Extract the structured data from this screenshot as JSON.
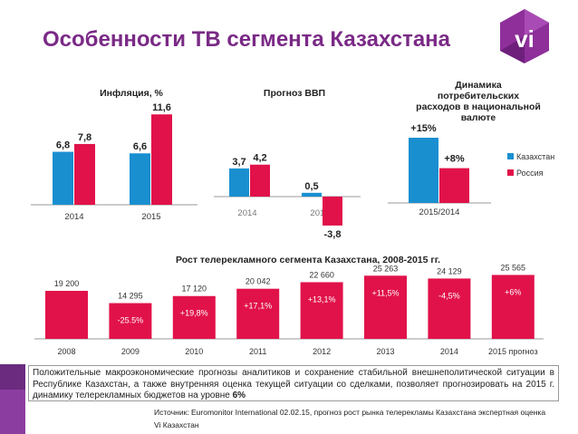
{
  "title": "Особенности ТВ сегмента Казахстана",
  "logo_text": "vi",
  "colors": {
    "kazakhstan": "#1a8fd0",
    "russia": "#e1124a",
    "accent": "#7a2a86"
  },
  "legend": [
    "Казахстан",
    "Россия"
  ],
  "note_text": "Положительные макроэкономические прогнозы аналитиков и сохранение стабильной внешнеполитической ситуации в Республике Казахстан, а также внутренняя оценка текущей ситуации со сделками, позволяет прогнозировать на 2015 г. динамику телерекламных бюджетов на уровне ",
  "note_highlight": "6%",
  "source": "Источник: Euromonitor International 02.02.15, прогноз рост рынка телерекламы Казахстана экспертная оценка Vi Казахстан",
  "chart_data": [
    {
      "type": "bar",
      "title": "Инфляция, %",
      "categories": [
        "2014",
        "2015"
      ],
      "series": [
        {
          "name": "Казахстан",
          "values": [
            6.8,
            6.6
          ],
          "labels": [
            "6,8",
            "6,6"
          ]
        },
        {
          "name": "Россия",
          "values": [
            7.8,
            11.6
          ],
          "labels": [
            "7,8",
            "11,6"
          ]
        }
      ]
    },
    {
      "type": "bar",
      "title": "Прогноз ВВП",
      "categories": [
        "2014",
        "2015"
      ],
      "series": [
        {
          "name": "Казахстан",
          "values": [
            3.7,
            0.5
          ],
          "labels": [
            "3,7",
            "0,5"
          ]
        },
        {
          "name": "Россия",
          "values": [
            4.2,
            -3.8
          ],
          "labels": [
            "4,2",
            "-3,8"
          ]
        }
      ]
    },
    {
      "type": "bar",
      "title": "Динамика потребительских расходов в национальной валюте",
      "categories": [
        "2015/2014"
      ],
      "series": [
        {
          "name": "Казахстан",
          "values": [
            15
          ],
          "labels": [
            "+15%"
          ]
        },
        {
          "name": "Россия",
          "values": [
            8
          ],
          "labels": [
            "+8%"
          ]
        }
      ],
      "legend": "right"
    },
    {
      "type": "bar",
      "title": "Рост телерекламного сегмента Казахстана, 2008-2015 гг.",
      "categories": [
        "2008",
        "2009",
        "2010",
        "2011",
        "2012",
        "2013",
        "2014",
        "2015 прогноз"
      ],
      "values": [
        19200,
        14295,
        17120,
        20042,
        22660,
        25263,
        24129,
        25565
      ],
      "value_labels": [
        "19 200",
        "14 295",
        "17 120",
        "20 042",
        "22 660",
        "25 263",
        "24 129",
        "25 565"
      ],
      "growth_labels": [
        "",
        "-25.5%",
        "+19,8%",
        "+17,1%",
        "+13,1%",
        "+11,5%",
        "-4,5%",
        "+6%"
      ]
    }
  ]
}
